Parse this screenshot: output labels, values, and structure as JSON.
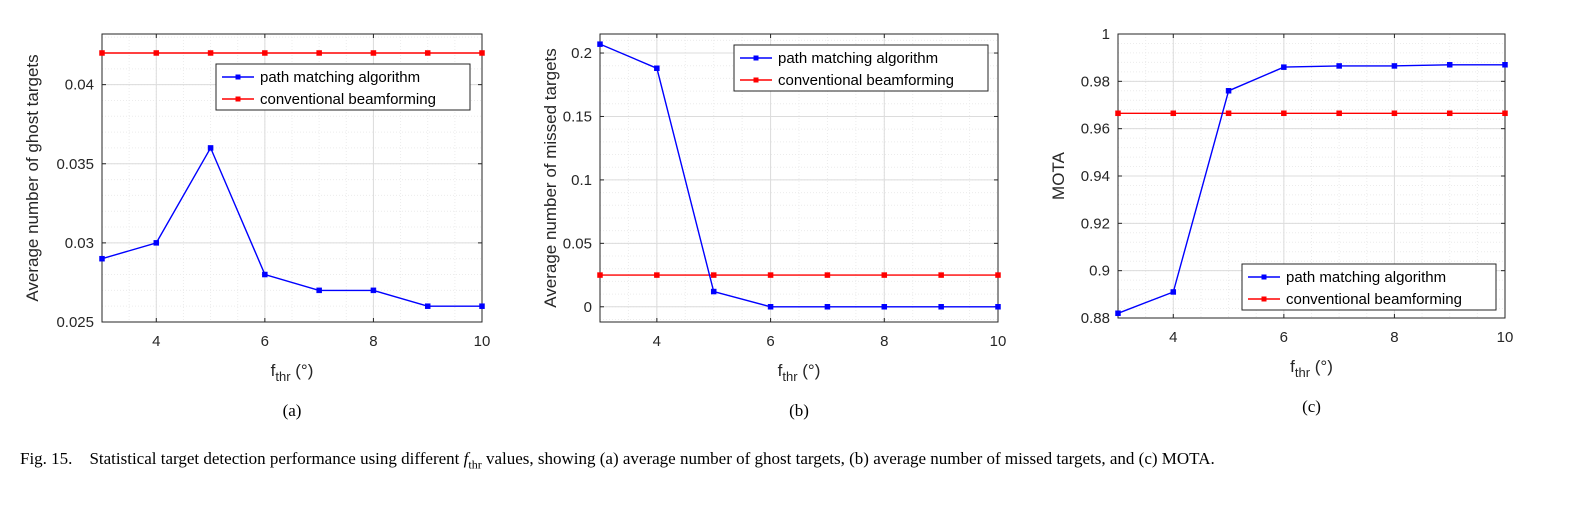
{
  "chart_data": [
    {
      "type": "line",
      "panel_label": "(a)",
      "xlabel": {
        "base": "f",
        "sub": "thr",
        "unit": " (°)"
      },
      "ylabel": "Average number of ghost targets",
      "x": [
        3,
        4,
        5,
        6,
        7,
        8,
        9,
        10
      ],
      "xlim": [
        3,
        10
      ],
      "ylim": [
        0.025,
        0.0432
      ],
      "xticks": [
        4,
        6,
        8,
        10
      ],
      "yticks": [
        0.025,
        0.03,
        0.035,
        0.04
      ],
      "ytick_labels": [
        "0.025",
        "0.03",
        "0.035",
        "0.04"
      ],
      "grid": true,
      "legend_position": "upper-right",
      "series": [
        {
          "name": "path matching algorithm",
          "color": "#0000ff",
          "values": [
            0.029,
            0.03,
            0.036,
            0.028,
            0.027,
            0.027,
            0.026,
            0.026
          ]
        },
        {
          "name": "conventional beamforming",
          "color": "#ff0000",
          "values": [
            0.042,
            0.042,
            0.042,
            0.042,
            0.042,
            0.042,
            0.042,
            0.042
          ]
        }
      ]
    },
    {
      "type": "line",
      "panel_label": "(b)",
      "xlabel": {
        "base": "f",
        "sub": "thr",
        "unit": " (°)"
      },
      "ylabel": "Average number of missed targets",
      "x": [
        3,
        4,
        5,
        6,
        7,
        8,
        9,
        10
      ],
      "xlim": [
        3,
        10
      ],
      "ylim": [
        -0.012,
        0.215
      ],
      "xticks": [
        4,
        6,
        8,
        10
      ],
      "yticks": [
        0,
        0.05,
        0.1,
        0.15,
        0.2
      ],
      "ytick_labels": [
        "0",
        "0.05",
        "0.1",
        "0.15",
        "0.2"
      ],
      "grid": true,
      "legend_position": "upper-right",
      "series": [
        {
          "name": "path matching algorithm",
          "color": "#0000ff",
          "values": [
            0.207,
            0.188,
            0.012,
            0.0,
            0.0,
            0.0,
            0.0,
            0.0
          ]
        },
        {
          "name": "conventional beamforming",
          "color": "#ff0000",
          "values": [
            0.025,
            0.025,
            0.025,
            0.025,
            0.025,
            0.025,
            0.025,
            0.025
          ]
        }
      ]
    },
    {
      "type": "line",
      "panel_label": "(c)",
      "xlabel": {
        "base": "f",
        "sub": "thr",
        "unit": " (°)"
      },
      "ylabel": "MOTA",
      "x": [
        3,
        4,
        5,
        6,
        7,
        8,
        9,
        10
      ],
      "xlim": [
        3,
        10
      ],
      "ylim": [
        0.88,
        1.0
      ],
      "xticks": [
        4,
        6,
        8,
        10
      ],
      "yticks": [
        0.88,
        0.9,
        0.92,
        0.94,
        0.96,
        0.98,
        1.0
      ],
      "ytick_labels": [
        "0.88",
        "0.9",
        "0.92",
        "0.94",
        "0.96",
        "0.98",
        "1"
      ],
      "grid": true,
      "legend_position": "lower-right",
      "series": [
        {
          "name": "path matching algorithm",
          "color": "#0000ff",
          "values": [
            0.882,
            0.891,
            0.976,
            0.986,
            0.9865,
            0.9865,
            0.987,
            0.987
          ]
        },
        {
          "name": "conventional beamforming",
          "color": "#ff0000",
          "values": [
            0.9665,
            0.9665,
            0.9665,
            0.9665,
            0.9665,
            0.9665,
            0.9665,
            0.9665
          ]
        }
      ]
    }
  ],
  "caption": {
    "label": "Fig. 15.",
    "text_before": "Statistical target detection performance using different",
    "symbol": "f",
    "symbol_sub": "thr",
    "text_after": "values, showing (a) average number of ghost targets, (b) average number of missed targets, and (c) MOTA."
  }
}
